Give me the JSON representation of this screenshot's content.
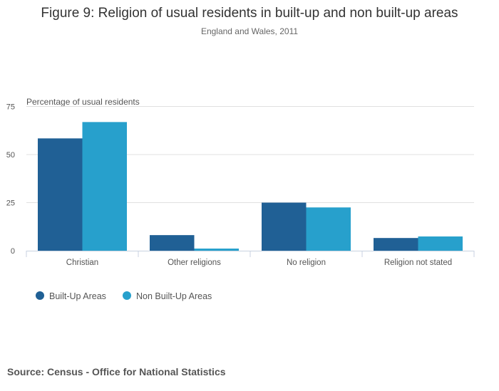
{
  "title": "Figure 9: Religion of usual residents in built-up and non built-up areas",
  "subtitle": "England and Wales, 2011",
  "source": "Source: Census - Office for National Statistics",
  "chart_data": {
    "type": "bar",
    "title": "Figure 9: Religion of usual residents in built-up and non built-up areas",
    "subtitle": "England and Wales, 2011",
    "ylabel": "Percentage of usual residents",
    "xlabel": "",
    "ylim": [
      0,
      75
    ],
    "yticks": [
      0,
      25,
      50,
      75
    ],
    "grid": true,
    "legend_placement": "bottom-left",
    "categories": [
      "Christian",
      "Other religions",
      "No religion",
      "Religion not stated"
    ],
    "series": [
      {
        "name": "Built-Up Areas",
        "color": "#206095",
        "values": [
          58.4,
          8.1,
          25.0,
          6.6
        ]
      },
      {
        "name": "Non Built-Up Areas",
        "color": "#27a0cc",
        "values": [
          66.9,
          1.1,
          22.5,
          7.4
        ]
      }
    ]
  }
}
